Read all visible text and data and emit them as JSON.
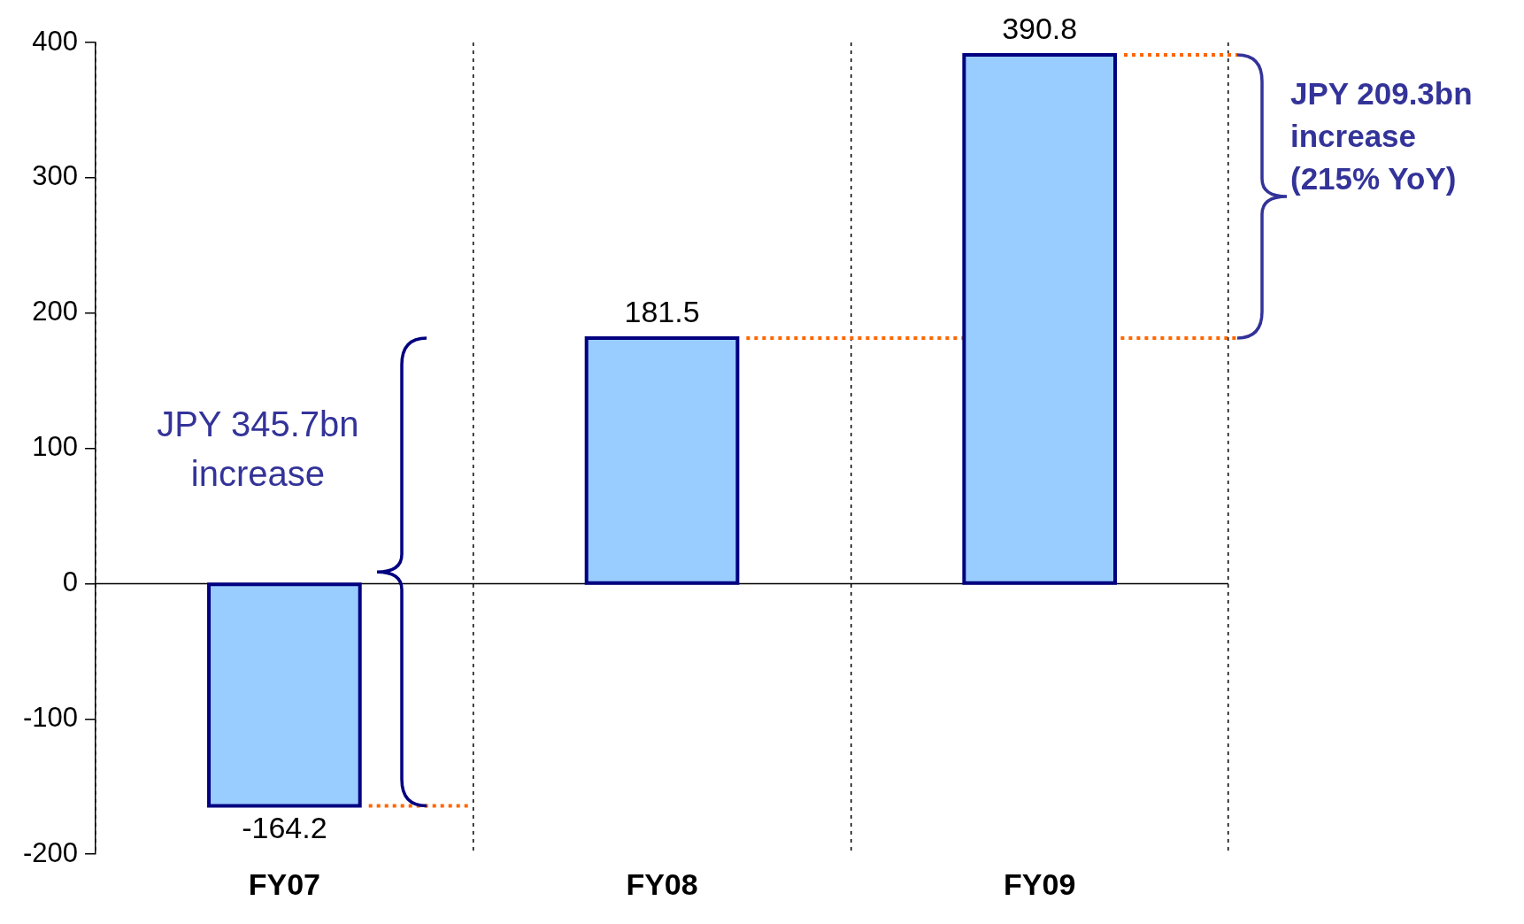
{
  "chart_data": {
    "type": "bar",
    "categories": [
      "FY07",
      "FY08",
      "FY09"
    ],
    "values": [
      -164.2,
      181.5,
      390.8
    ],
    "color": "#99ccff",
    "ylim": [
      -200,
      400
    ],
    "yticks": [
      -200,
      -100,
      0,
      100,
      200,
      300,
      400
    ],
    "grid": "x",
    "data_labels": true,
    "ref_lines": [
      {
        "axis": "y",
        "value": -164.2,
        "color": "#ff6600",
        "line_style": "dotted"
      },
      {
        "axis": "y",
        "value": 181.5,
        "color": "#ff6600",
        "line_style": "dotted"
      },
      {
        "axis": "y",
        "value": 390.8,
        "color": "#ff6600",
        "line_style": "dotted"
      }
    ],
    "annotations": [
      "JPY 345.7bn increase",
      "JPY 209.3bn increase (215% YoY)"
    ]
  }
}
